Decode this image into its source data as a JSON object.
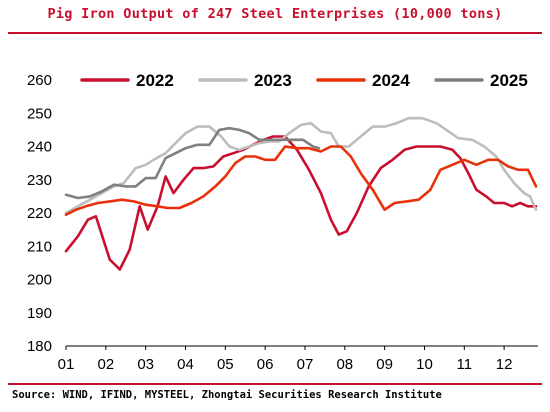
{
  "title": "Pig Iron Output of 247 Steel Enterprises (10,000 tons)",
  "source": "Source: WIND, IFIND, MYSTEEL, Zhongtai Securities Research Institute",
  "chart_data": {
    "type": "line",
    "categories": [
      "01",
      "02",
      "03",
      "04",
      "05",
      "06",
      "07",
      "08",
      "09",
      "10",
      "11",
      "12"
    ],
    "ylim": [
      180,
      260
    ],
    "yticks": [
      180,
      190,
      200,
      210,
      220,
      230,
      240,
      250,
      260
    ],
    "xlim": [
      1,
      12.8
    ],
    "legend_position": "top",
    "grid": false,
    "series": [
      {
        "name": "2022",
        "color": "#c8102e",
        "points": [
          [
            1,
            208.5
          ],
          [
            1.3,
            213
          ],
          [
            1.55,
            218
          ],
          [
            1.75,
            219
          ],
          [
            2.1,
            206
          ],
          [
            2.35,
            203
          ],
          [
            2.6,
            209
          ],
          [
            2.85,
            222
          ],
          [
            3.05,
            215
          ],
          [
            3.3,
            222
          ],
          [
            3.5,
            231
          ],
          [
            3.7,
            226
          ],
          [
            3.95,
            230
          ],
          [
            4.2,
            233.5
          ],
          [
            4.45,
            233.5
          ],
          [
            4.7,
            234
          ],
          [
            4.95,
            237
          ],
          [
            5.2,
            238
          ],
          [
            5.45,
            239
          ],
          [
            5.7,
            240.5
          ],
          [
            5.95,
            242
          ],
          [
            6.2,
            243
          ],
          [
            6.5,
            243
          ],
          [
            6.8,
            239
          ],
          [
            7.1,
            233
          ],
          [
            7.4,
            226
          ],
          [
            7.65,
            218
          ],
          [
            7.85,
            213.5
          ],
          [
            8.05,
            214.5
          ],
          [
            8.3,
            220
          ],
          [
            8.6,
            228
          ],
          [
            8.9,
            233.5
          ],
          [
            9.2,
            236
          ],
          [
            9.5,
            239
          ],
          [
            9.8,
            240
          ],
          [
            10.1,
            240
          ],
          [
            10.4,
            240
          ],
          [
            10.7,
            239
          ],
          [
            10.9,
            236.5
          ],
          [
            11.1,
            232
          ],
          [
            11.3,
            227
          ],
          [
            11.55,
            225
          ],
          [
            11.75,
            223
          ],
          [
            12.0,
            223
          ],
          [
            12.2,
            222
          ],
          [
            12.4,
            223
          ],
          [
            12.6,
            222
          ],
          [
            12.8,
            222
          ]
        ]
      },
      {
        "name": "2023",
        "color": "#bdbdbd",
        "points": [
          [
            1,
            220
          ],
          [
            1.3,
            222
          ],
          [
            1.6,
            224
          ],
          [
            1.9,
            226
          ],
          [
            2.2,
            228
          ],
          [
            2.45,
            229
          ],
          [
            2.75,
            233.5
          ],
          [
            3.0,
            234.5
          ],
          [
            3.2,
            236
          ],
          [
            3.5,
            238
          ],
          [
            3.75,
            241
          ],
          [
            4.0,
            244
          ],
          [
            4.3,
            246
          ],
          [
            4.6,
            246
          ],
          [
            4.9,
            243
          ],
          [
            5.1,
            240
          ],
          [
            5.35,
            239
          ],
          [
            5.6,
            240
          ],
          [
            5.85,
            241
          ],
          [
            6.1,
            241.5
          ],
          [
            6.35,
            241.5
          ],
          [
            6.6,
            244
          ],
          [
            6.9,
            246.5
          ],
          [
            7.15,
            247
          ],
          [
            7.4,
            244.5
          ],
          [
            7.65,
            244
          ],
          [
            7.85,
            240
          ],
          [
            8.1,
            240
          ],
          [
            8.4,
            243
          ],
          [
            8.7,
            246
          ],
          [
            9.0,
            246
          ],
          [
            9.3,
            247
          ],
          [
            9.6,
            248.5
          ],
          [
            9.95,
            248.5
          ],
          [
            10.3,
            247
          ],
          [
            10.55,
            245
          ],
          [
            10.85,
            242.5
          ],
          [
            11.2,
            242
          ],
          [
            11.5,
            240
          ],
          [
            11.8,
            237
          ],
          [
            12.0,
            233
          ],
          [
            12.25,
            229
          ],
          [
            12.5,
            226
          ],
          [
            12.65,
            225
          ],
          [
            12.8,
            221
          ]
        ]
      },
      {
        "name": "2024",
        "color": "#e8310b",
        "points": [
          [
            1,
            219.5
          ],
          [
            1.25,
            221
          ],
          [
            1.5,
            222
          ],
          [
            1.8,
            223
          ],
          [
            2.1,
            223.5
          ],
          [
            2.4,
            224
          ],
          [
            2.7,
            223.5
          ],
          [
            3.0,
            222.5
          ],
          [
            3.3,
            222
          ],
          [
            3.55,
            221.5
          ],
          [
            3.85,
            221.5
          ],
          [
            4.15,
            223
          ],
          [
            4.45,
            225
          ],
          [
            4.75,
            228
          ],
          [
            5.0,
            231
          ],
          [
            5.25,
            235
          ],
          [
            5.5,
            237
          ],
          [
            5.75,
            237
          ],
          [
            6.0,
            236
          ],
          [
            6.25,
            236
          ],
          [
            6.5,
            240
          ],
          [
            6.8,
            239.5
          ],
          [
            7.1,
            239.5
          ],
          [
            7.4,
            238.5
          ],
          [
            7.65,
            240
          ],
          [
            7.9,
            240
          ],
          [
            8.15,
            237
          ],
          [
            8.4,
            232
          ],
          [
            8.7,
            227
          ],
          [
            9.0,
            221
          ],
          [
            9.25,
            223
          ],
          [
            9.55,
            223.5
          ],
          [
            9.85,
            224
          ],
          [
            10.15,
            227
          ],
          [
            10.4,
            233
          ],
          [
            10.7,
            234.5
          ],
          [
            11.0,
            236
          ],
          [
            11.3,
            234.5
          ],
          [
            11.6,
            236
          ],
          [
            11.85,
            236
          ],
          [
            12.1,
            234
          ],
          [
            12.35,
            233
          ],
          [
            12.6,
            233
          ],
          [
            12.8,
            228
          ]
        ]
      },
      {
        "name": "2025",
        "color": "#808080",
        "points": [
          [
            1,
            225.5
          ],
          [
            1.3,
            224.5
          ],
          [
            1.6,
            225
          ],
          [
            1.9,
            226.5
          ],
          [
            2.2,
            228.5
          ],
          [
            2.5,
            228
          ],
          [
            2.75,
            228
          ],
          [
            3.0,
            230.5
          ],
          [
            3.25,
            230.5
          ],
          [
            3.5,
            236.5
          ],
          [
            3.75,
            238
          ],
          [
            4.0,
            239.5
          ],
          [
            4.3,
            240.5
          ],
          [
            4.6,
            240.5
          ],
          [
            4.85,
            245
          ],
          [
            5.1,
            245.5
          ],
          [
            5.35,
            245
          ],
          [
            5.6,
            244
          ],
          [
            5.85,
            242
          ],
          [
            6.1,
            242
          ],
          [
            6.4,
            242
          ],
          [
            6.7,
            242
          ],
          [
            6.95,
            242
          ],
          [
            7.2,
            240
          ],
          [
            7.35,
            239.5
          ]
        ]
      }
    ]
  }
}
